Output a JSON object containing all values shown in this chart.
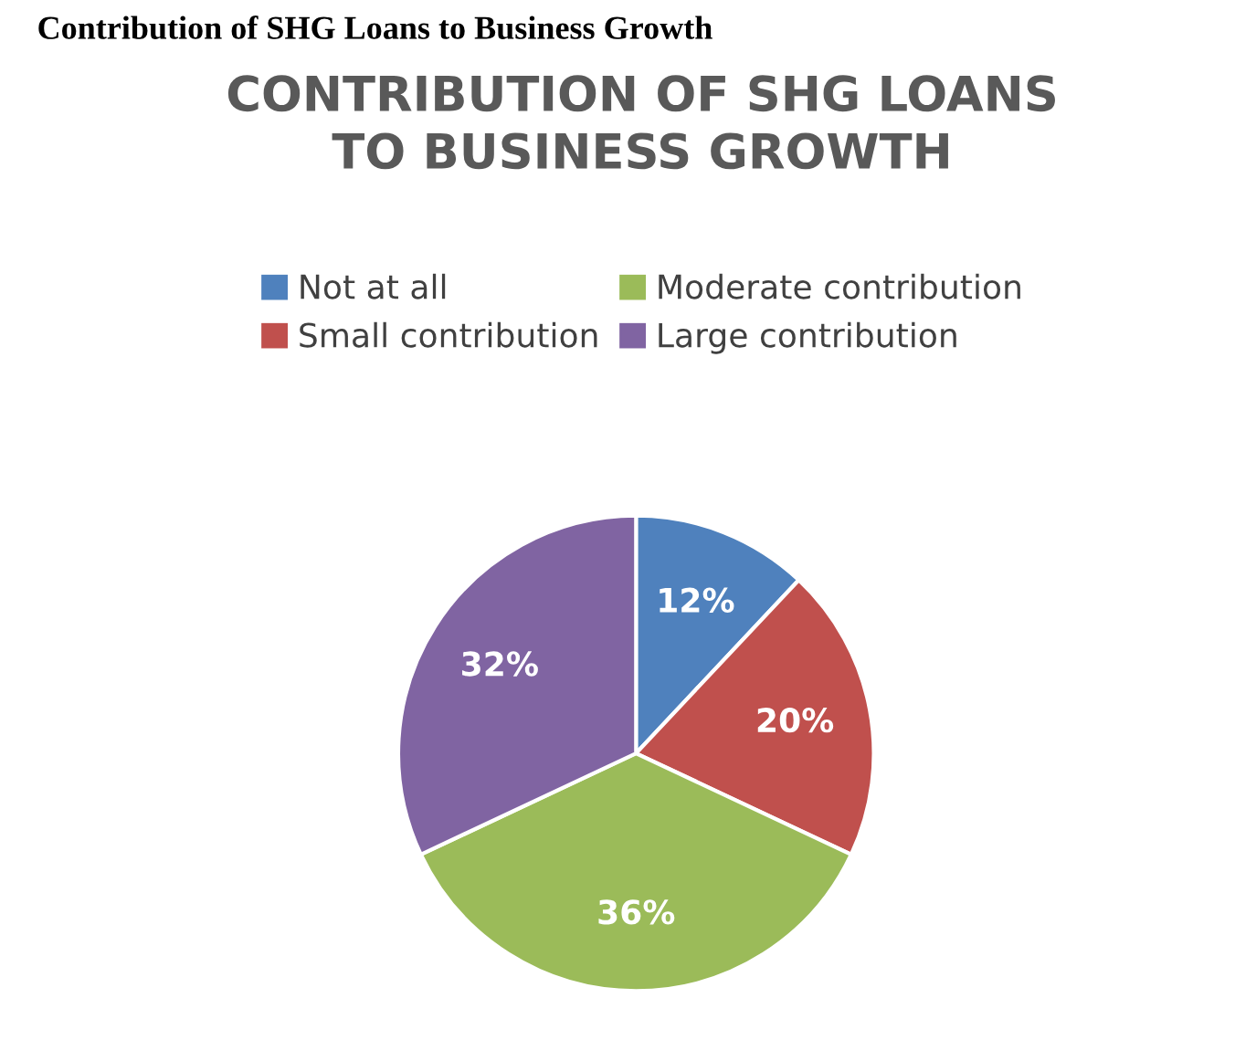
{
  "chart_data": {
    "type": "pie",
    "title": "CONTRIBUTION OF SHG LOANS\nTO BUSINESS GROWTH",
    "annotations": [
      "Contribution of SHG Loans to Business Growth"
    ],
    "categories": [
      "Not at all",
      "Small contribution",
      "Moderate contribution",
      "Large contribution"
    ],
    "values": [
      12,
      20,
      36,
      32
    ],
    "colors": [
      "#4f81bd",
      "#c0504d",
      "#9bbb59",
      "#8064a2"
    ],
    "value_labels": [
      "12%",
      "20%",
      "36%",
      "32%"
    ],
    "legend": "top"
  }
}
